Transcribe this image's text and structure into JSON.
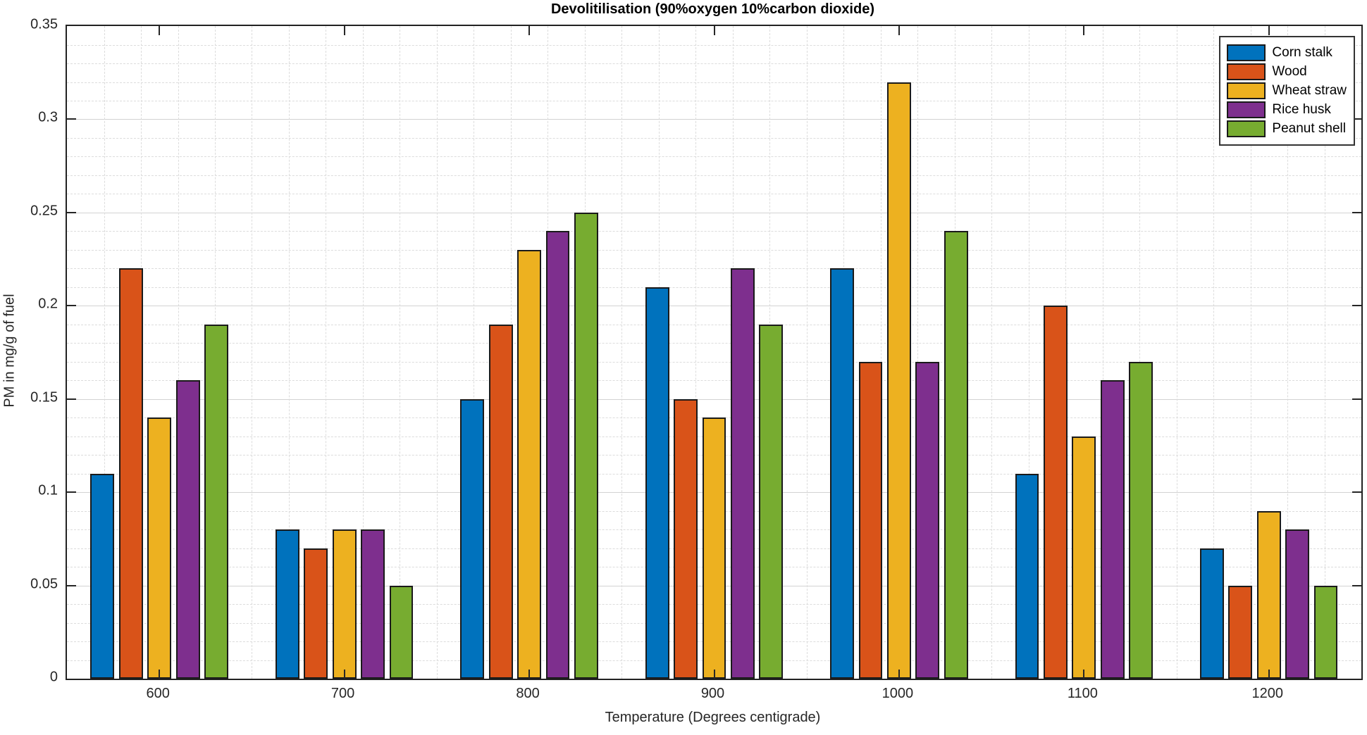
{
  "title": "Devolitilisation (90%oxygen 10%carbon dioxide)",
  "chart_data": {
    "type": "bar",
    "title": "Devolitilisation (90%oxygen 10%carbon dioxide)",
    "xlabel": "Temperature (Degrees centigrade)",
    "ylabel": "PM in mg/g of fuel",
    "categories": [
      600,
      700,
      800,
      900,
      1000,
      1100,
      1200
    ],
    "series": [
      {
        "name": "Corn stalk",
        "color": "#0072BD",
        "values": [
          0.11,
          0.08,
          0.15,
          0.21,
          0.22,
          0.11,
          0.07
        ]
      },
      {
        "name": "Wood",
        "color": "#D95319",
        "values": [
          0.22,
          0.07,
          0.19,
          0.15,
          0.17,
          0.2,
          0.05
        ]
      },
      {
        "name": "Wheat straw",
        "color": "#EDB120",
        "values": [
          0.14,
          0.08,
          0.23,
          0.14,
          0.32,
          0.13,
          0.09
        ]
      },
      {
        "name": "Rice husk",
        "color": "#7E2F8E",
        "values": [
          0.16,
          0.08,
          0.24,
          0.22,
          0.17,
          0.16,
          0.08
        ]
      },
      {
        "name": "Peanut shell",
        "color": "#77AC30",
        "values": [
          0.19,
          0.05,
          0.25,
          0.19,
          0.24,
          0.17,
          0.05
        ]
      }
    ],
    "ylim": [
      0,
      0.35
    ],
    "ytick_step": 0.05,
    "ytick_labels": [
      "0",
      "0.05",
      "0.1",
      "0.15",
      "0.2",
      "0.25",
      "0.3",
      "0.35"
    ],
    "xlim": [
      550,
      1250
    ],
    "minor_y_step": 0.01,
    "minor_x_step": 20,
    "grid": "major-solid-minor-dashed",
    "legend_position": "top-right",
    "axis_color": "#262626",
    "major_grid_color": "#d2d2d2",
    "minor_grid_color": "#dcdcdc",
    "bar_edge_color": "#1a1a1a"
  }
}
